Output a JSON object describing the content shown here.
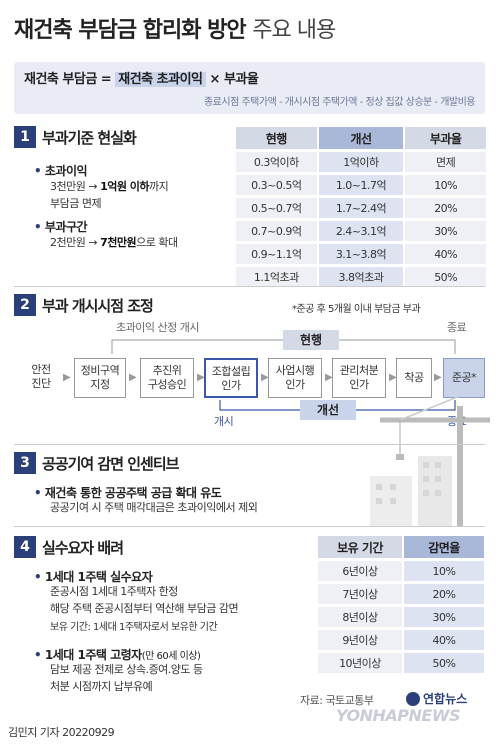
{
  "title": {
    "bold": "재건축 부담금 합리화 방안",
    "light": "주요 내용"
  },
  "formula": {
    "lhs": "재건축 부담금 =",
    "highlight": "재건축 초과이익",
    "rhs": "× 부과율",
    "sub": "종료시점 주택가액 - 개시시점 주택가액 - 정상 집값 상승분 - 개발비용"
  },
  "section1": {
    "num": "1",
    "title": "부과기준 현실화",
    "bullet1_title": "초과이익",
    "bullet1_line1_pre": "3천만원 → ",
    "bullet1_line1_bold": "1억원 이하",
    "bullet1_line1_post": "까지",
    "bullet1_line2": "부담금 면제",
    "bullet2_title": "부과구간",
    "bullet2_line1_pre": "2천만원 → ",
    "bullet2_line1_bold": "7천만원",
    "bullet2_line1_post": "으로 확대",
    "table": {
      "headers": [
        "현행",
        "개선",
        "부과율"
      ],
      "rows": [
        [
          "0.3억이하",
          "1억이하",
          "면제"
        ],
        [
          "0.3~0.5억",
          "1.0~1.7억",
          "10%"
        ],
        [
          "0.5~0.7억",
          "1.7~2.4억",
          "20%"
        ],
        [
          "0.7~0.9억",
          "2.4~3.1억",
          "30%"
        ],
        [
          "0.9~1.1억",
          "3.1~3.8억",
          "40%"
        ],
        [
          "1.1억초과",
          "3.8억초과",
          "50%"
        ]
      ]
    }
  },
  "section2": {
    "num": "2",
    "title": "부과 개시시점 조정",
    "note": "*준공 후 5개월 이내 부담금 부과",
    "top_label": "초과이익 산정 개시",
    "top_end": "종료",
    "current_label": "현행",
    "improve_label": "개선",
    "bottom_label": "개시",
    "bottom_end": "종료",
    "steps": [
      {
        "l1": "안전",
        "l2": "진단"
      },
      {
        "l1": "정비구역",
        "l2": "지정"
      },
      {
        "l1": "추진위",
        "l2": "구성승인"
      },
      {
        "l1": "조합설립",
        "l2": "인가"
      },
      {
        "l1": "사업시행",
        "l2": "인가"
      },
      {
        "l1": "관리처분",
        "l2": "인가"
      },
      {
        "l1": "착공",
        "l2": ""
      },
      {
        "l1": "준공*",
        "l2": ""
      }
    ]
  },
  "section3": {
    "num": "3",
    "title": "공공기여 감면 인센티브",
    "bullet_title": "재건축 통한 공공주택 공급 확대 유도",
    "line": "공공기여 시 주택 매각대금은 초과이익에서 제외"
  },
  "section4": {
    "num": "4",
    "title": "실수요자 배려",
    "b1_title": "1세대 1주택 실수요자",
    "b1_l1": "준공시점 1세대 1주택자 한정",
    "b1_l2": "해당 주택 준공시점부터 역산해 부담금 감면",
    "b1_l3": "보유 기간: 1세대 1주택자로서 보유한 기간",
    "b2_title": "1세대 1주택 고령자",
    "b2_title_small": "(만 60세 이상)",
    "b2_l1": "담보 제공 전제로 상속.증여.양도 등",
    "b2_l2": "처분 시점까지 납부유예",
    "table": {
      "headers": [
        "보유 기간",
        "감면율"
      ],
      "rows": [
        [
          "6년이상",
          "10%"
        ],
        [
          "7년이상",
          "20%"
        ],
        [
          "8년이상",
          "30%"
        ],
        [
          "9년이상",
          "40%"
        ],
        [
          "10년이상",
          "50%"
        ]
      ]
    }
  },
  "source": "자료: 국토교통부",
  "logo": "연합뉴스",
  "watermark": "YONHAPNEWS",
  "reporter": "김민지 기자",
  "date": "20220929"
}
